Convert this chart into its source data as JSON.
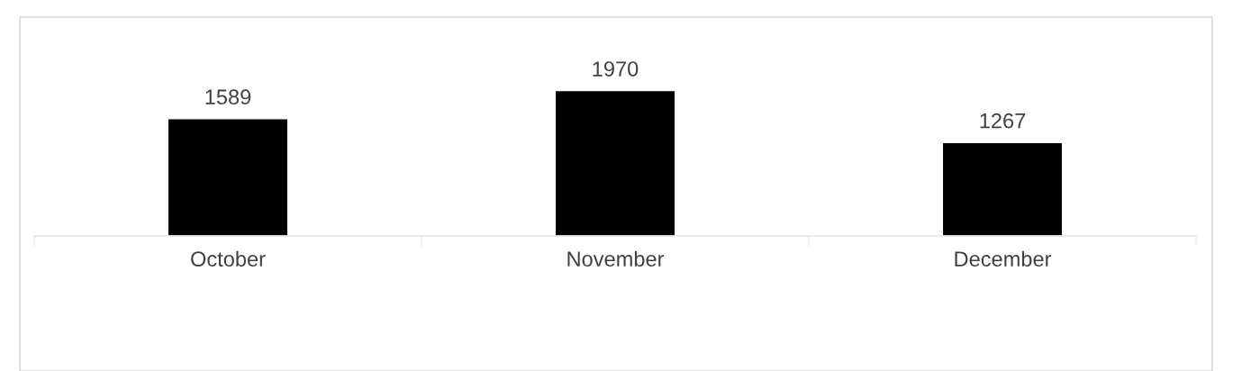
{
  "chart_data": {
    "type": "bar",
    "categories": [
      "October",
      "November",
      "December"
    ],
    "values": [
      1589,
      1970,
      1267
    ],
    "color": "#000000",
    "data_labels": true,
    "grid": false,
    "legend": false
  }
}
